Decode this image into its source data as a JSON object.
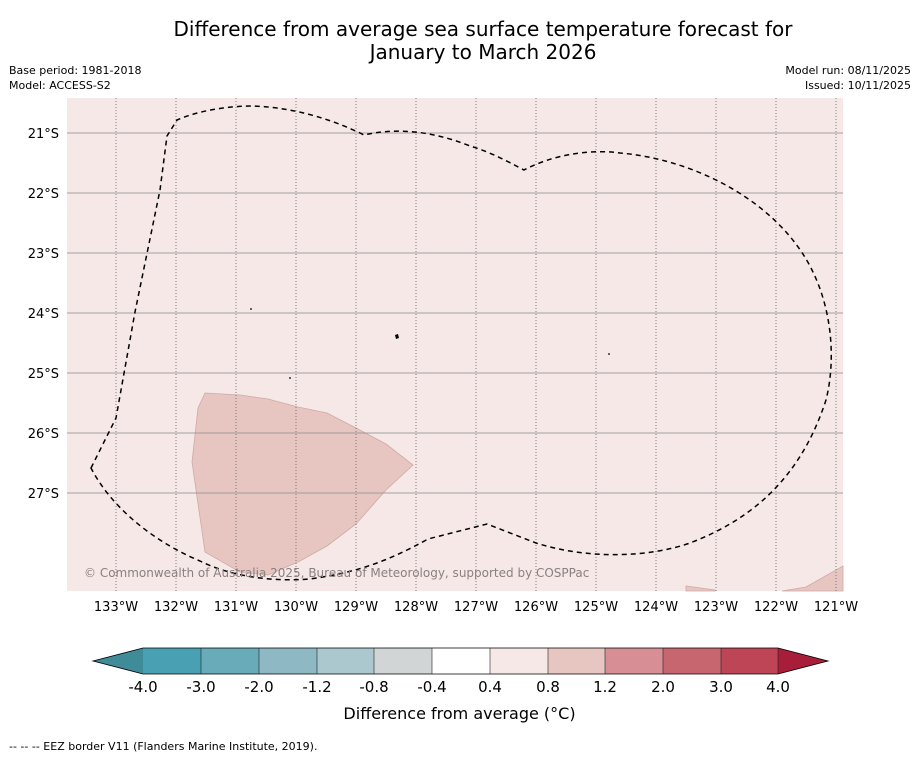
{
  "title": {
    "line1": "Difference from average sea surface temperature forecast for",
    "line2": "January to March 2026"
  },
  "meta": {
    "base_period": "Base period: 1981-2018",
    "model": "Model: ACCESS-S2",
    "model_run": "Model run: 08/11/2025",
    "issued": "Issued: 10/11/2025"
  },
  "map": {
    "lat_labels": [
      "21°S",
      "22°S",
      "23°S",
      "24°S",
      "25°S",
      "26°S",
      "27°S"
    ],
    "lon_labels": [
      "133°W",
      "132°W",
      "131°W",
      "130°W",
      "129°W",
      "128°W",
      "127°W",
      "126°W",
      "125°W",
      "124°W",
      "123°W",
      "122°W",
      "121°W"
    ],
    "background_class": "0.4 to 0.8",
    "anomaly_patch_class": "0.8 to 1.2",
    "copyright": "© Commonwealth of Australia 2025, Bureau of Meteorology, supported by COSPPac"
  },
  "colorbar": {
    "ticks": [
      "-4.0",
      "-3.0",
      "-2.0",
      "-1.2",
      "-0.8",
      "-0.4",
      "0.4",
      "0.8",
      "1.2",
      "2.0",
      "3.0",
      "4.0"
    ],
    "colors": [
      "#3f8b98",
      "#48a0b2",
      "#6aabba",
      "#8db8c4",
      "#aac8cd",
      "#d1d5d6",
      "#ffffff",
      "#f5e8e7",
      "#e7c6c2",
      "#d78f95",
      "#c86670",
      "#bd4555",
      "#a81d3a"
    ],
    "label": "Difference from average (°C)"
  },
  "footnote": "--  --  -- EEZ border V11 (Flanders Marine Institute, 2019)."
}
